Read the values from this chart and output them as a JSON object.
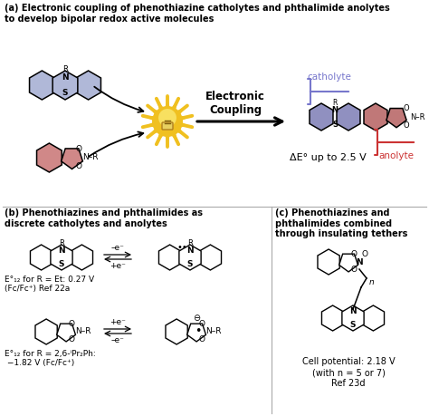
{
  "bg_color": "#ffffff",
  "phenothiazine_fill": "#b0b8d8",
  "phthalimide_fill": "#d08888",
  "combined_blue": "#9090c0",
  "combined_pink": "#c07878",
  "combined_mid": "#a890a8",
  "black": "#000000",
  "catholyte_color": "#7777cc",
  "anolyte_color": "#cc3333",
  "divider_color": "#aaaaaa",
  "title_a": "(a) Electronic coupling of phenothiazine catholytes and phthalimide anolytes\nto develop bipolar redox active molecules",
  "title_b": "(b) Phenothiazines and phthalimides as\ndiscrete catholytes and anolytes",
  "title_c": "(c) Phenothiazines and\nphthalimides combined\nthrough insulating tethers",
  "coupling_label": "Electronic\nCoupling",
  "delta_e": "ΔE° up to 2.5 V",
  "catholyte_lbl": "catholyte",
  "anolyte_lbl": "anolyte",
  "e12_1": "E°₁₂ for R = Et: 0.27 V\n(Fc/Fc⁺) Ref 22a",
  "e12_2": "E°₁₂ for R = 2,6-ⁱPr₂Ph:\n −1.82 V (Fc/Fc⁺)",
  "cell_pot": "Cell potential: 2.18 V\n(with n = 5 or 7)\nRef 23d",
  "starburst_color": "#f0c020",
  "starburst_inner": "#f8e060"
}
